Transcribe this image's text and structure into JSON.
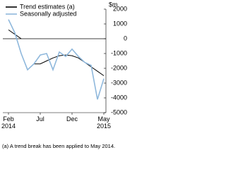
{
  "chart_data": {
    "type": "line",
    "unit_label": "$m",
    "categories": [
      "Feb\n2014",
      null,
      null,
      null,
      null,
      "Jul",
      null,
      null,
      null,
      null,
      "Dec",
      null,
      null,
      null,
      null,
      "May\n2015"
    ],
    "series": [
      {
        "name": "Trend estimates (a)",
        "color": "#000000",
        "values": [
          600,
          300,
          0,
          null,
          -1700,
          -1700,
          -1500,
          -1300,
          -1150,
          -1100,
          -1150,
          -1300,
          -1600,
          -1900,
          -2200,
          -2500
        ]
      },
      {
        "name": "Seasonally adjusted",
        "color": "#8fb8dc",
        "values": [
          1300,
          400,
          -1000,
          -2100,
          -1700,
          -1100,
          -1000,
          -2100,
          -900,
          -1200,
          -700,
          -1200,
          -1600,
          -1800,
          -4100,
          -2700
        ]
      }
    ],
    "ylim": [
      -5000,
      2000
    ],
    "yticks": [
      2000,
      1000,
      0,
      -1000,
      -2000,
      -3000,
      -4000,
      -5000
    ],
    "footnote": "(a) A trend break has been applied to May 2014."
  }
}
